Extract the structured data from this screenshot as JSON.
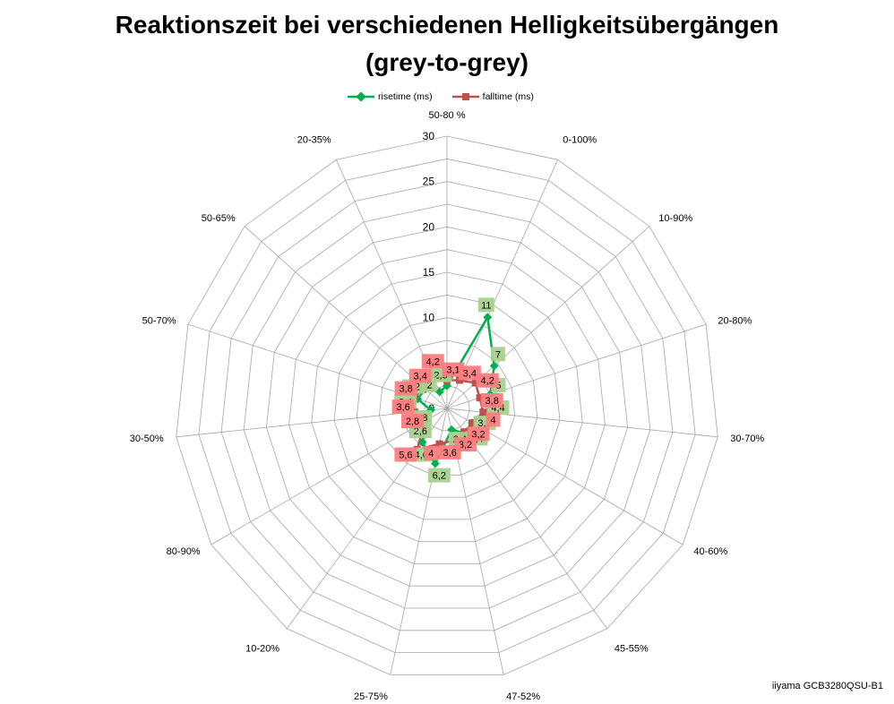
{
  "title_line1": "Reaktionszeit bei verschiedenen Helligkeitsübergängen",
  "title_line2": "(grey-to-grey)",
  "footer": "iiyama GCB3280QSU-B1",
  "colors": {
    "rise": "#00b050",
    "fall": "#c0504d",
    "rise_label": "#a9d18e",
    "fall_label": "#ff7c80",
    "grid": "#a6a6a6"
  },
  "chart_data": {
    "type": "radar",
    "categories": [
      "50-80 %",
      "0-100%",
      "10-90%",
      "20-80%",
      "30-70%",
      "40-60%",
      "45-55%",
      "47-52%",
      "25-75%",
      "10-20%",
      "80-90%",
      "30-50%",
      "50-70%",
      "50-65%",
      "20-35%"
    ],
    "rlim": [
      0,
      30
    ],
    "r_ticks": [
      "0",
      "5",
      "10",
      "15",
      "20",
      "25",
      "30"
    ],
    "series": [
      {
        "name": "risetime (ms)",
        "values": [
          2.5,
          11,
          7,
          5,
          4.4,
          3.2,
          3.4,
          2.4,
          6.2,
          4.6,
          2.6,
          1.8,
          3.4,
          3.2,
          2
        ],
        "labels": [
          "2,5",
          "11",
          "7",
          "5",
          "4,4",
          "3,2",
          "3,4",
          "2,4",
          "6,2",
          "4,6",
          "2,6",
          "1,8",
          "3,4",
          "3,2",
          "2"
        ]
      },
      {
        "name": "falltime (ms)",
        "values": [
          3.1,
          3.4,
          4.2,
          3.8,
          4,
          3.2,
          3.2,
          3.6,
          4,
          5.6,
          2.8,
          3.6,
          3.8,
          3.4,
          4.2
        ],
        "labels": [
          "3,1",
          "3,4",
          "4,2",
          "3,8",
          "4",
          "3,2",
          "3,2",
          "3,6",
          "4",
          "5,6",
          "2,8",
          "3,6",
          "3,8",
          "3,4",
          "4,2"
        ]
      }
    ],
    "legend": "top"
  }
}
